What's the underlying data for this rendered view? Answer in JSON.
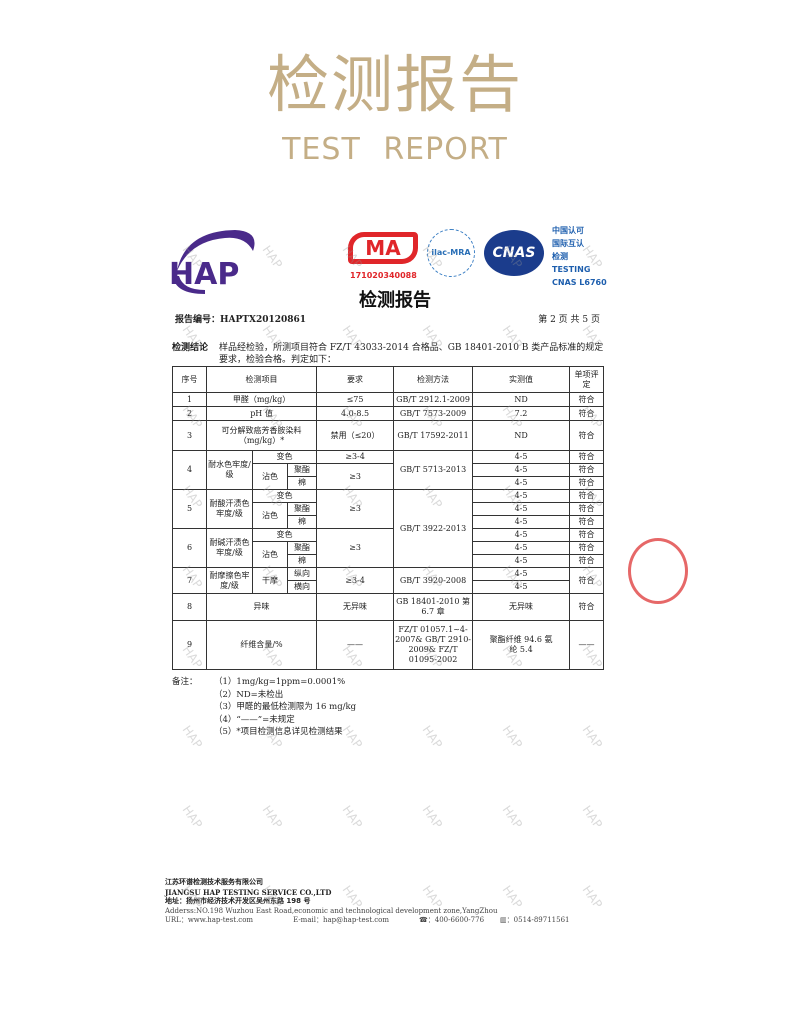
{
  "header": {
    "title_cn": "检测报告",
    "title_en": "TEST REPORT"
  },
  "logos": {
    "hap": "HAP",
    "cma": "MA",
    "cma_number": "171020340088",
    "ilac": "ilac-MRA",
    "cnas": "CNAS",
    "cnas_lines": [
      "中国认可",
      "国际互认",
      "检测",
      "TESTING",
      "CNAS L6760"
    ]
  },
  "report": {
    "title": "检测报告",
    "number_label": "报告编号：",
    "number": "HAPTX20120861",
    "page": "第 2 页 共 5 页",
    "conclusion_label": "检测结论",
    "conclusion": "样品经检验，所测项目符合 FZ/T 43033-2014 合格品、GB 18401-2010 B 类产品标准的规定要求，检验合格。判定如下："
  },
  "table": {
    "headers": [
      "序号",
      "检测项目",
      "要求",
      "检测方法",
      "实测值",
      "单项评定"
    ],
    "r1": [
      "1",
      "甲醛（mg/kg）",
      "≤75",
      "GB/T 2912.1-2009",
      "ND",
      "符合"
    ],
    "r2": [
      "2",
      "pH 值",
      "4.0-8.5",
      "GB/T 7573-2009",
      "7.2",
      "符合"
    ],
    "r3": [
      "3",
      "可分解致癌芳香胺染料（mg/kg）*",
      "禁用（≤20）",
      "GB/T 17592-2011",
      "ND",
      "符合"
    ],
    "r4": {
      "no": "4",
      "item": "耐水色牢度/级",
      "change": "变色",
      "stain": "沾色",
      "poly": "聚酯",
      "cotton": "棉",
      "req1": "≥3-4",
      "req2": "≥3",
      "method": "GB/T 5713-2013",
      "values": [
        "4-5",
        "4-5",
        "4-5"
      ],
      "results": [
        "符合",
        "符合",
        "符合"
      ]
    },
    "r5": {
      "no": "5",
      "item": "耐酸汗渍色牢度/级",
      "change": "变色",
      "stain": "沾色",
      "poly": "聚酯",
      "cotton": "棉",
      "req": "≥3",
      "method": "GB/T 3922-2013",
      "values": [
        "4-5",
        "4-5",
        "4-5"
      ],
      "results": [
        "符合",
        "符合",
        "符合"
      ]
    },
    "r6": {
      "no": "6",
      "item": "耐碱汗渍色牢度/级",
      "change": "变色",
      "stain": "沾色",
      "poly": "聚酯",
      "cotton": "棉",
      "req": "≥3",
      "values": [
        "4-5",
        "4-5",
        "4-5"
      ],
      "results": [
        "符合",
        "符合",
        "符合"
      ]
    },
    "r7": {
      "no": "7",
      "item": "耐摩擦色牢度/级",
      "dry": "干摩",
      "warp": "纵向",
      "weft": "横向",
      "req": "≥3-4",
      "method": "GB/T 3920-2008",
      "values": [
        "4-5",
        "4-5"
      ],
      "result": "符合"
    },
    "r8": [
      "8",
      "异味",
      "无异味",
      "GB 18401-2010 第 6.7 章",
      "无异味",
      "符合"
    ],
    "r9": [
      "9",
      "纤维含量/%",
      "——",
      "FZ/T 01057.1~4-2007& GB/T 2910-2009& FZ/T 01095-2002",
      "聚酯纤维 94.6 氨纶 5.4",
      "——"
    ]
  },
  "notes": {
    "label": "备注：",
    "items": [
      "（1）1mg/kg=1ppm=0.0001%",
      "（2）ND=未检出",
      "（3）甲醛的最低检测限为 16 mg/kg",
      "（4）“——”=未规定",
      "（5）*项目检测信息详见检测结果"
    ]
  },
  "footer": {
    "company_cn": "江苏环谱检测技术服务有限公司",
    "company_en": "JIANGSU HAP TESTING SERVICE CO.,LTD",
    "address_cn": "地址：扬州市经济技术开发区吴州东路 198 号",
    "address_en": "Adderss:NO.198 Wuzhou East Road,economic and technological development zone,YangZhou",
    "url": "URL：www.hap-test.com",
    "email": "E-mail：hap@hap-test.com",
    "phone": "400-6600-776",
    "fax": "0514-89711561"
  },
  "watermark": "HAP",
  "colors": {
    "title": "#c4ae86",
    "cma": "#e0262a",
    "cnas": "#1b3c8c",
    "hap": "#4a2a8a"
  }
}
